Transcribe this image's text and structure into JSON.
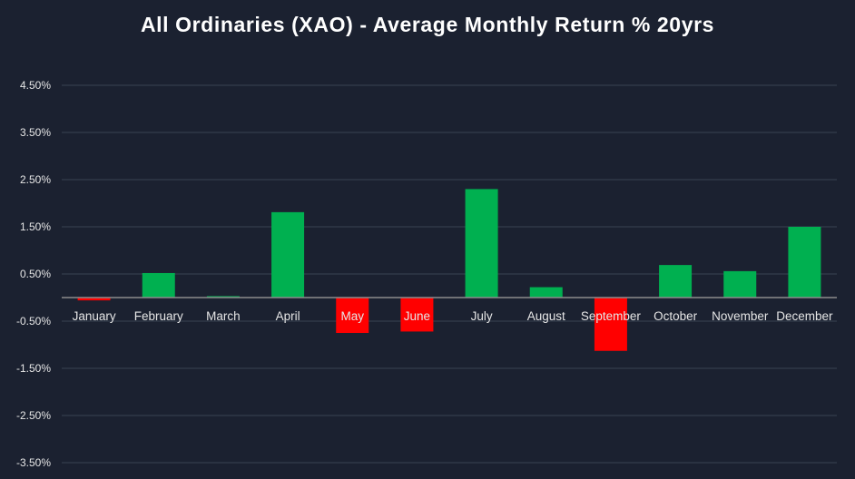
{
  "chart_data": {
    "type": "bar",
    "title": "All Ordinaries (XAO) - Average Monthly Return % 20yrs",
    "xlabel": "",
    "ylabel": "",
    "ylim": [
      -3.75,
      4.5
    ],
    "ytick_values": [
      4.5,
      3.5,
      2.5,
      1.5,
      0.5,
      -0.5,
      -1.5,
      -2.5,
      -3.5
    ],
    "ytick_labels": [
      "4.50%",
      "3.50%",
      "2.50%",
      "1.50%",
      "0.50%",
      "-0.50%",
      "-1.50%",
      "-2.50%",
      "-3.50%"
    ],
    "categories": [
      "January",
      "February",
      "March",
      "April",
      "May",
      "June",
      "July",
      "August",
      "September",
      "October",
      "November",
      "December"
    ],
    "values": [
      -0.06,
      0.52,
      0.03,
      1.81,
      -0.75,
      -0.72,
      2.3,
      0.22,
      -1.13,
      0.69,
      0.56,
      1.5
    ],
    "legend": "none",
    "grid": true,
    "colors": {
      "positive": "#00b050",
      "negative": "#ff0000",
      "background": "#1b2130",
      "grid": "#3a4252",
      "axis": "#8c8c8c",
      "text": "#e6e6e6"
    }
  }
}
